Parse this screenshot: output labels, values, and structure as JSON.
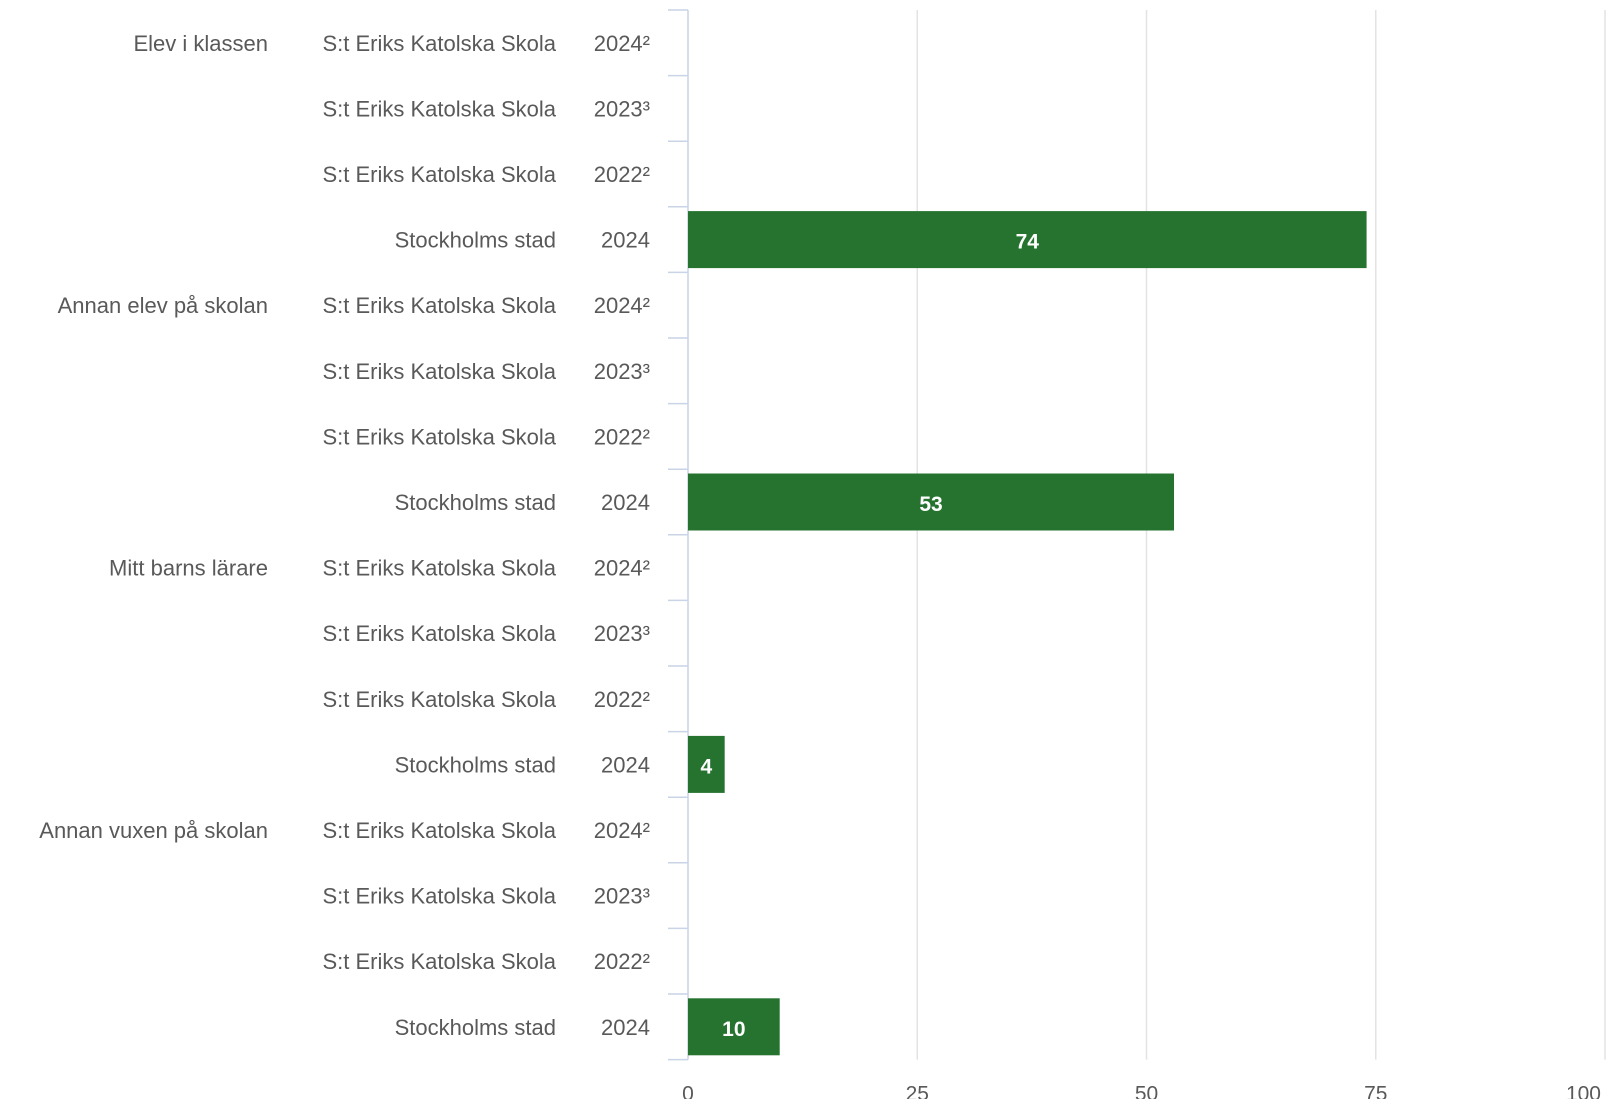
{
  "chart_data": {
    "type": "bar",
    "orientation": "horizontal",
    "title": "",
    "xlabel": "",
    "ylabel": "",
    "xlim": [
      0,
      100
    ],
    "x_ticks": [
      "0",
      "25",
      "50",
      "75",
      "100"
    ],
    "grid": true,
    "legend": "none",
    "colors": {
      "bar": "#267330",
      "grid": "#e3e3e3",
      "axis": "#c9d4e6",
      "label": "#595959",
      "data_label": "#ffffff"
    },
    "groups": [
      {
        "label": "Elev i klassen",
        "rows": [
          {
            "entity": "S:t Eriks Katolska Skola",
            "year": "2024²",
            "value": null
          },
          {
            "entity": "S:t Eriks Katolska Skola",
            "year": "2023³",
            "value": null
          },
          {
            "entity": "S:t Eriks Katolska Skola",
            "year": "2022²",
            "value": null
          },
          {
            "entity": "Stockholms stad",
            "year": "2024",
            "value": 74,
            "value_label": "74"
          }
        ]
      },
      {
        "label": "Annan elev på skolan",
        "rows": [
          {
            "entity": "S:t Eriks Katolska Skola",
            "year": "2024²",
            "value": null
          },
          {
            "entity": "S:t Eriks Katolska Skola",
            "year": "2023³",
            "value": null
          },
          {
            "entity": "S:t Eriks Katolska Skola",
            "year": "2022²",
            "value": null
          },
          {
            "entity": "Stockholms stad",
            "year": "2024",
            "value": 53,
            "value_label": "53"
          }
        ]
      },
      {
        "label": "Mitt barns lärare",
        "rows": [
          {
            "entity": "S:t Eriks Katolska Skola",
            "year": "2024²",
            "value": null
          },
          {
            "entity": "S:t Eriks Katolska Skola",
            "year": "2023³",
            "value": null
          },
          {
            "entity": "S:t Eriks Katolska Skola",
            "year": "2022²",
            "value": null
          },
          {
            "entity": "Stockholms stad",
            "year": "2024",
            "value": 4,
            "value_label": "4"
          }
        ]
      },
      {
        "label": "Annan vuxen på skolan",
        "rows": [
          {
            "entity": "S:t Eriks Katolska Skola",
            "year": "2024²",
            "value": null
          },
          {
            "entity": "S:t Eriks Katolska Skola",
            "year": "2023³",
            "value": null
          },
          {
            "entity": "S:t Eriks Katolska Skola",
            "year": "2022²",
            "value": null
          },
          {
            "entity": "Stockholms stad",
            "year": "2024",
            "value": 10,
            "value_label": "10"
          }
        ]
      }
    ]
  }
}
